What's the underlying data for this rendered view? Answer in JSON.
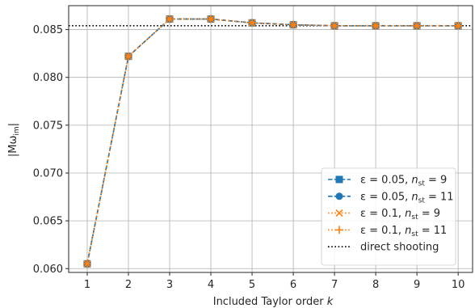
{
  "chart_data": {
    "type": "line",
    "xlabel_text": "Included Taylor order ",
    "xlabel_var": "k",
    "ylabel_text": "|Mω",
    "ylabel_sub": "im",
    "ylabel_close": "|",
    "x": [
      1,
      2,
      3,
      4,
      5,
      6,
      7,
      8,
      9,
      10
    ],
    "xlim": [
      0.55,
      10.35
    ],
    "ylim": [
      0.0596,
      0.0875
    ],
    "xticks": [
      1,
      2,
      3,
      4,
      5,
      6,
      7,
      8,
      9,
      10
    ],
    "yticks": [
      0.06,
      0.065,
      0.07,
      0.075,
      0.08,
      0.085
    ],
    "ytick_labels": [
      "0.060",
      "0.065",
      "0.070",
      "0.075",
      "0.080",
      "0.085"
    ],
    "grid": true,
    "legend_position": "lower-right",
    "series": [
      {
        "name": "ε = 0.05, n_st = 9",
        "legend_parts": [
          "ε = 0.05, ",
          "n",
          "st",
          " = 9"
        ],
        "color": "#1f77b4",
        "linestyle": "dashed",
        "marker": "square",
        "values": [
          0.0605,
          0.0822,
          0.0861,
          0.0861,
          0.0857,
          0.0855,
          0.0854,
          0.0854,
          0.0854,
          0.0854
        ]
      },
      {
        "name": "ε = 0.05, n_st = 11",
        "legend_parts": [
          "ε = 0.05, ",
          "n",
          "st",
          " = 11"
        ],
        "color": "#1f77b4",
        "linestyle": "dashed",
        "marker": "circle",
        "values": [
          0.0605,
          0.0822,
          0.0861,
          0.0861,
          0.0857,
          0.0855,
          0.0854,
          0.0854,
          0.0854,
          0.0854
        ]
      },
      {
        "name": "ε = 0.1, n_st = 9",
        "legend_parts": [
          "ε = 0.1, ",
          "n",
          "st",
          " = 9"
        ],
        "color": "#ff7f0e",
        "linestyle": "dotted",
        "marker": "x",
        "values": [
          0.0605,
          0.0822,
          0.0861,
          0.0861,
          0.0857,
          0.0855,
          0.0854,
          0.0854,
          0.0854,
          0.0854
        ]
      },
      {
        "name": "ε = 0.1, n_st = 11",
        "legend_parts": [
          "ε = 0.1, ",
          "n",
          "st",
          " = 11"
        ],
        "color": "#ff7f0e",
        "linestyle": "dotted",
        "marker": "plus",
        "values": [
          0.0605,
          0.0822,
          0.0861,
          0.0861,
          0.0857,
          0.0855,
          0.0854,
          0.0854,
          0.0854,
          0.0854
        ]
      }
    ],
    "reference_line": {
      "name": "direct shooting",
      "value": 0.0854,
      "color": "#000000",
      "linestyle": "dotted"
    }
  }
}
